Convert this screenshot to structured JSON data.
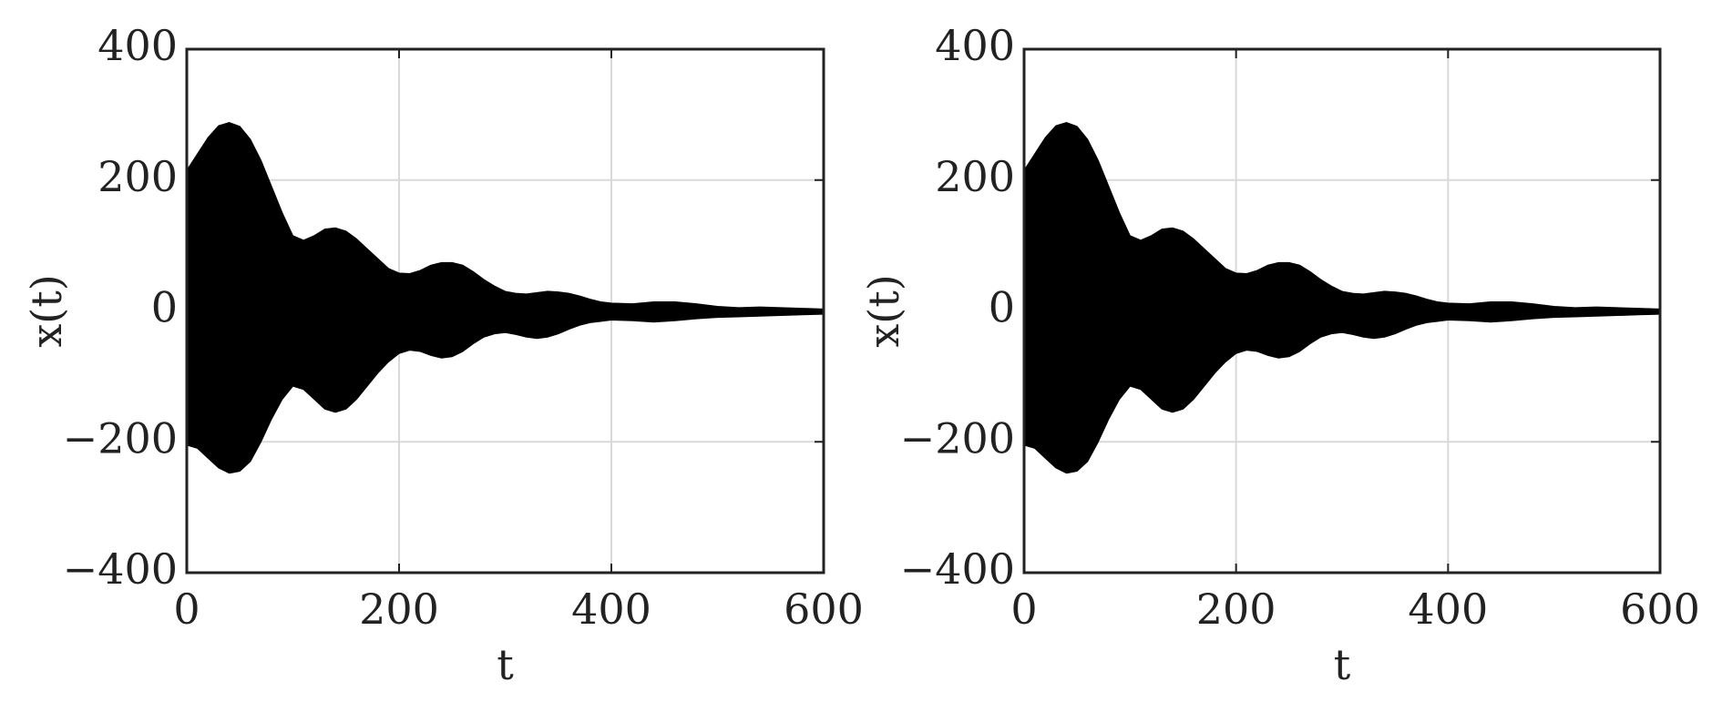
{
  "chart_data": [
    {
      "type": "area",
      "xlabel": "t",
      "ylabel": "x(t)",
      "x": [
        0,
        10,
        20,
        30,
        40,
        50,
        60,
        70,
        80,
        90,
        100,
        110,
        120,
        130,
        140,
        150,
        160,
        170,
        180,
        190,
        200,
        210,
        220,
        230,
        240,
        250,
        260,
        270,
        280,
        290,
        300,
        310,
        320,
        330,
        340,
        350,
        360,
        370,
        380,
        390,
        400,
        420,
        440,
        460,
        480,
        500,
        520,
        540,
        560,
        580,
        600
      ],
      "series": [
        {
          "color": "#000000",
          "values": [
            215,
            240,
            265,
            283,
            288,
            282,
            262,
            230,
            190,
            150,
            115,
            108,
            115,
            125,
            127,
            122,
            110,
            95,
            80,
            65,
            58,
            57,
            62,
            70,
            74,
            74,
            70,
            60,
            48,
            38,
            30,
            27,
            26,
            28,
            30,
            29,
            27,
            23,
            18,
            14,
            12,
            11,
            14,
            14,
            11,
            7,
            5,
            6,
            5,
            4,
            3
          ]
        },
        {
          "color": "#000000",
          "values": [
            -205,
            -210,
            -225,
            -240,
            -248,
            -245,
            -230,
            -200,
            -165,
            -135,
            -115,
            -120,
            -135,
            -150,
            -155,
            -150,
            -135,
            -115,
            -95,
            -78,
            -65,
            -60,
            -62,
            -68,
            -72,
            -70,
            -62,
            -50,
            -40,
            -35,
            -33,
            -36,
            -40,
            -42,
            -40,
            -35,
            -28,
            -22,
            -18,
            -16,
            -14,
            -15,
            -17,
            -15,
            -12,
            -10,
            -9,
            -8,
            -7,
            -6,
            -5
          ]
        }
      ],
      "xlim": [
        0,
        600
      ],
      "ylim": [
        -400,
        400
      ],
      "xticks": [
        0,
        200,
        400,
        600
      ],
      "yticks": [
        {
          "value": -400,
          "label": "−400"
        },
        {
          "value": -200,
          "label": "−200"
        },
        0,
        200,
        400
      ],
      "grid": true
    },
    {
      "type": "area",
      "xlabel": "t",
      "ylabel": "x(t)",
      "x": [
        0,
        10,
        20,
        30,
        40,
        50,
        60,
        70,
        80,
        90,
        100,
        110,
        120,
        130,
        140,
        150,
        160,
        170,
        180,
        190,
        200,
        210,
        220,
        230,
        240,
        250,
        260,
        270,
        280,
        290,
        300,
        310,
        320,
        330,
        340,
        350,
        360,
        370,
        380,
        390,
        400,
        420,
        440,
        460,
        480,
        500,
        520,
        540,
        560,
        580,
        600
      ],
      "series": [
        {
          "color": "#000000",
          "values": [
            215,
            240,
            265,
            283,
            288,
            282,
            262,
            230,
            190,
            150,
            115,
            108,
            115,
            125,
            127,
            122,
            110,
            95,
            80,
            65,
            58,
            57,
            62,
            70,
            74,
            74,
            70,
            60,
            48,
            38,
            30,
            27,
            26,
            28,
            30,
            29,
            27,
            23,
            18,
            14,
            12,
            11,
            14,
            14,
            11,
            7,
            5,
            6,
            5,
            4,
            3
          ]
        },
        {
          "color": "#000000",
          "values": [
            -205,
            -210,
            -225,
            -240,
            -248,
            -245,
            -230,
            -200,
            -165,
            -135,
            -115,
            -120,
            -135,
            -150,
            -155,
            -150,
            -135,
            -115,
            -95,
            -78,
            -65,
            -60,
            -62,
            -68,
            -72,
            -70,
            -62,
            -50,
            -40,
            -35,
            -33,
            -36,
            -40,
            -42,
            -40,
            -35,
            -28,
            -22,
            -18,
            -16,
            -14,
            -15,
            -17,
            -15,
            -12,
            -10,
            -9,
            -8,
            -7,
            -6,
            -5
          ]
        }
      ],
      "xlim": [
        0,
        600
      ],
      "ylim": [
        -400,
        400
      ],
      "xticks": [
        0,
        200,
        400,
        600
      ],
      "yticks": [
        {
          "value": -400,
          "label": "−400"
        },
        {
          "value": -200,
          "label": "−200"
        },
        0,
        200,
        400
      ],
      "grid": true
    }
  ]
}
